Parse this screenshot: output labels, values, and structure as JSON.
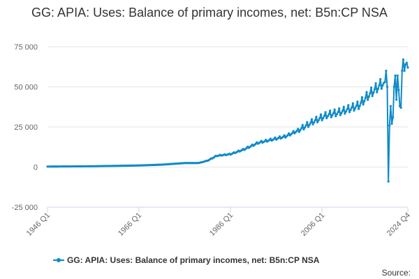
{
  "colors": {
    "series": "#0f8bc8",
    "grid": "#e6e6e6",
    "axis": "#ccd6eb"
  },
  "credits": "Source:",
  "chart_data": {
    "type": "line",
    "title": "GG: APIA: Uses: Balance of primary incomes, net: B5n:CP NSA",
    "xlabel": "",
    "ylabel": "",
    "ylim": [
      -25000,
      75000
    ],
    "yticks": [
      -25000,
      0,
      25000,
      50000,
      75000
    ],
    "ytick_labels": [
      "-25 000",
      "0",
      "25 000",
      "50 000",
      "75 000"
    ],
    "xrange": [
      "1946 Q1",
      "2024 Q4"
    ],
    "xticks": [
      "1946 Q1",
      "1966 Q1",
      "1986 Q1",
      "2006 Q1",
      "2024 Q4"
    ],
    "grid": true,
    "legend": "bottom",
    "series": [
      {
        "name": "GG: APIA: Uses: Balance of primary incomes, net: B5n:CP NSA",
        "frequency": "quarterly",
        "x": [
          "1946 Q1",
          "1956 Q1",
          "1966 Q1",
          "1971 Q1",
          "1976 Q1",
          "1979 Q1",
          "1981 Q1",
          "1983 Q1",
          "1986 Q1",
          "1989 Q1",
          "1992 Q1",
          "1995 Q1",
          "1998 Q1",
          "2001 Q1",
          "2004 Q1",
          "2007 Q1",
          "2010 Q1",
          "2012 Q1",
          "2014 Q1",
          "2016 Q1",
          "2018 Q1",
          "2019 Q4",
          "2020 Q1",
          "2020 Q2",
          "2020 Q3",
          "2020 Q4",
          "2021 Q1",
          "2021 Q2",
          "2021 Q3",
          "2021 Q4",
          "2022 Q1",
          "2022 Q2",
          "2022 Q3",
          "2022 Q4",
          "2023 Q1",
          "2023 Q2",
          "2023 Q3",
          "2023 Q4",
          "2024 Q1",
          "2024 Q2",
          "2024 Q3",
          "2024 Q4"
        ],
        "values": [
          300,
          500,
          1000,
          1500,
          2500,
          2500,
          4000,
          7000,
          8000,
          11000,
          15000,
          17000,
          19000,
          23000,
          28000,
          32000,
          34000,
          36000,
          38000,
          44000,
          49000,
          53000,
          60000,
          50000,
          -9000,
          26000,
          38000,
          27000,
          31000,
          50000,
          57000,
          42000,
          57000,
          48000,
          38000,
          37000,
          60000,
          67000,
          60000,
          64000,
          65000,
          62000
        ],
        "sawtooth_amplitude_from": "2001 Q1"
      }
    ]
  }
}
